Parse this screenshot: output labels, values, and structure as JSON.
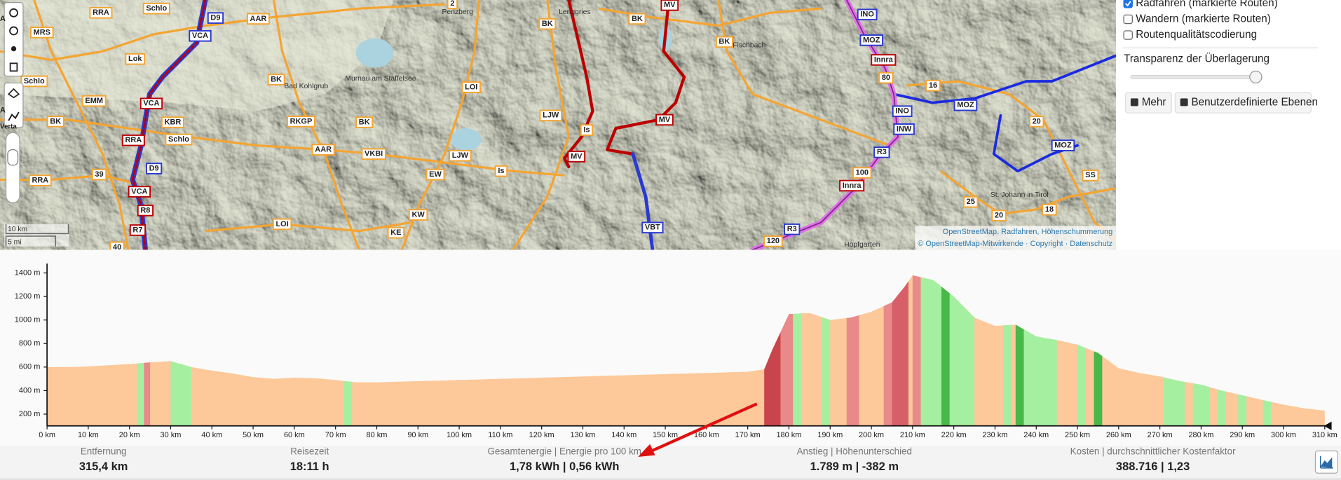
{
  "map": {
    "labels": [
      "RRA",
      "Schlo",
      "D9",
      "AAR",
      "2",
      "BK",
      "BK",
      "MV",
      "INO",
      "MRS",
      "VCA",
      "MOZ",
      "BK",
      "Lok",
      "Innra",
      "Schlo",
      "LOI",
      "16",
      "EMM",
      "VCA",
      "BK",
      "MOZ",
      "INO",
      "LJW",
      "MV",
      "BK",
      "KBR",
      "RKGP",
      "BK",
      "INW",
      "20",
      "Is",
      "RRA",
      "Schlo",
      "AAR",
      "VKBI",
      "LJW",
      "MV",
      "R3",
      "MOZ",
      "D9",
      "39",
      "EW",
      "Is",
      "100",
      "SS",
      "RRA",
      "VCA",
      "Innra",
      "R8",
      "25",
      "18",
      "KW",
      "20",
      "R7",
      "LOI",
      "KE",
      "VBT",
      "R3",
      "120",
      "40",
      "80"
    ],
    "towns": [
      "Penzberg",
      "Murnau am Staffelsee",
      "Bad Kohlgrub",
      "Lenggries",
      "Fischbach",
      "Hopfgarten",
      "St. Johann in Tirol"
    ],
    "scale": [
      "10 km",
      "5 mi"
    ],
    "edge_fragments": [
      "A",
      "A",
      "Verta"
    ],
    "attribution": [
      "OpenStreetMap, Radfahren, Höhenschummerung",
      "© OpenStreetMap-Mitwirkende · Copyright · Datenschutz"
    ]
  },
  "layers": {
    "options": [
      {
        "label": "Radfahren (markierte Routen)",
        "checked": true
      },
      {
        "label": "Wandern (markierte Routen)",
        "checked": false
      },
      {
        "label": "Routenqualitätscodierung",
        "checked": false
      }
    ],
    "opacity_label": "Transparenz der Überlagerung",
    "opacity": 0.95,
    "buttons": [
      "Mehr",
      "Benutzerdefinierte Ebenen"
    ]
  },
  "elevation_chart": {
    "type": "area",
    "color": "#fdc89a",
    "x": [
      0,
      5,
      10,
      15,
      20,
      25,
      30,
      35,
      40,
      45,
      50,
      55,
      60,
      65,
      70,
      75,
      80,
      85,
      90,
      95,
      100,
      105,
      110,
      115,
      120,
      125,
      130,
      135,
      140,
      145,
      150,
      155,
      160,
      165,
      170,
      174,
      176,
      178,
      180,
      185,
      190,
      195,
      200,
      205,
      208,
      210,
      215,
      220,
      225,
      230,
      235,
      240,
      245,
      250,
      255,
      260,
      265,
      270,
      275,
      280,
      285,
      290,
      295,
      300,
      305,
      310
    ],
    "values": [
      600,
      600,
      605,
      615,
      625,
      640,
      650,
      600,
      570,
      545,
      515,
      500,
      510,
      505,
      490,
      470,
      470,
      475,
      480,
      485,
      490,
      495,
      500,
      505,
      510,
      515,
      520,
      525,
      530,
      535,
      540,
      545,
      550,
      555,
      560,
      580,
      750,
      900,
      1050,
      1060,
      1000,
      1020,
      1070,
      1150,
      1280,
      1380,
      1340,
      1200,
      1020,
      950,
      960,
      860,
      830,
      790,
      720,
      590,
      550,
      520,
      480,
      450,
      400,
      360,
      320,
      280,
      250,
      230
    ],
    "bands": [
      {
        "start": 22,
        "end": 23.5,
        "color": "#a4f0a0"
      },
      {
        "start": 23.5,
        "end": 25,
        "color": "#e88a8a"
      },
      {
        "start": 30,
        "end": 35,
        "color": "#a4f0a0"
      },
      {
        "start": 72,
        "end": 74,
        "color": "#a4f0a0"
      },
      {
        "start": 174,
        "end": 178,
        "color": "#c9454c"
      },
      {
        "start": 178,
        "end": 181,
        "color": "#e88a8a"
      },
      {
        "start": 181,
        "end": 183,
        "color": "#a4f0a0"
      },
      {
        "start": 188,
        "end": 190,
        "color": "#a4f0a0"
      },
      {
        "start": 194,
        "end": 197,
        "color": "#e88a8a"
      },
      {
        "start": 203,
        "end": 205,
        "color": "#e88a8a"
      },
      {
        "start": 205,
        "end": 209,
        "color": "#d76068"
      },
      {
        "start": 210,
        "end": 212,
        "color": "#e88a8a"
      },
      {
        "start": 212,
        "end": 217,
        "color": "#a4f0a0"
      },
      {
        "start": 217,
        "end": 219,
        "color": "#48b848"
      },
      {
        "start": 219,
        "end": 225,
        "color": "#a4f0a0"
      },
      {
        "start": 232,
        "end": 234,
        "color": "#a4f0a0"
      },
      {
        "start": 235,
        "end": 237,
        "color": "#48b848"
      },
      {
        "start": 237,
        "end": 245,
        "color": "#a4f0a0"
      },
      {
        "start": 250,
        "end": 252,
        "color": "#a4f0a0"
      },
      {
        "start": 254,
        "end": 256,
        "color": "#48b848"
      },
      {
        "start": 271,
        "end": 276,
        "color": "#a4f0a0"
      },
      {
        "start": 278,
        "end": 282,
        "color": "#a4f0a0"
      },
      {
        "start": 284,
        "end": 286,
        "color": "#a4f0a0"
      },
      {
        "start": 289,
        "end": 291,
        "color": "#a4f0a0"
      },
      {
        "start": 295,
        "end": 297,
        "color": "#a4f0a0"
      }
    ],
    "xlim": [
      0,
      310
    ],
    "ylim": [
      100,
      1480
    ],
    "xticks": [
      {
        "value": 0,
        "label": "0 km"
      },
      {
        "value": 10,
        "label": "10 km"
      },
      {
        "value": 20,
        "label": "20 km"
      },
      {
        "value": 30,
        "label": "30 km"
      },
      {
        "value": 40,
        "label": "40 km"
      },
      {
        "value": 50,
        "label": "50 km"
      },
      {
        "value": 60,
        "label": "60 km"
      },
      {
        "value": 70,
        "label": "70 km"
      },
      {
        "value": 80,
        "label": "80 km"
      },
      {
        "value": 90,
        "label": "90 km"
      },
      {
        "value": 100,
        "label": "100 km"
      },
      {
        "value": 110,
        "label": "110 km"
      },
      {
        "value": 120,
        "label": "120 km"
      },
      {
        "value": 130,
        "label": "130 km"
      },
      {
        "value": 140,
        "label": "140 km"
      },
      {
        "value": 150,
        "label": "150 km"
      },
      {
        "value": 160,
        "label": "160 km"
      },
      {
        "value": 170,
        "label": "170 km"
      },
      {
        "value": 180,
        "label": "180 km"
      },
      {
        "value": 190,
        "label": "190 km"
      },
      {
        "value": 200,
        "label": "200 km"
      },
      {
        "value": 210,
        "label": "210 km"
      },
      {
        "value": 220,
        "label": "220 km"
      },
      {
        "value": 230,
        "label": "230 km"
      },
      {
        "value": 240,
        "label": "240 km"
      },
      {
        "value": 250,
        "label": "250 km"
      },
      {
        "value": 260,
        "label": "260 km"
      },
      {
        "value": 270,
        "label": "270 km"
      },
      {
        "value": 280,
        "label": "280 km"
      },
      {
        "value": 290,
        "label": "290 km"
      },
      {
        "value": 300,
        "label": "300 km"
      },
      {
        "value": 310,
        "label": "310 km"
      }
    ],
    "yticks": [
      {
        "value": 200,
        "label": "200 m"
      },
      {
        "value": 400,
        "label": "400 m"
      },
      {
        "value": 600,
        "label": "600 m"
      },
      {
        "value": 800,
        "label": "800 m"
      },
      {
        "value": 1000,
        "label": "1000 m"
      },
      {
        "value": 1200,
        "label": "1200 m"
      },
      {
        "value": 1400,
        "label": "1400 m"
      }
    ]
  },
  "stats": [
    {
      "label": "Entfernung",
      "value": "315,4 km"
    },
    {
      "label": "Reisezeit",
      "value": "18:11 h"
    },
    {
      "label": "Gesamtenergie | Energie pro 100 km",
      "value": "1,78 kWh | 0,56 kWh"
    },
    {
      "label": "Anstieg | Höhenunterschied",
      "value": "1.789 m | -382 m"
    },
    {
      "label": "Kosten | durchschnittlicher Kostenfaktor",
      "value": "388.716 | 1,23"
    }
  ]
}
